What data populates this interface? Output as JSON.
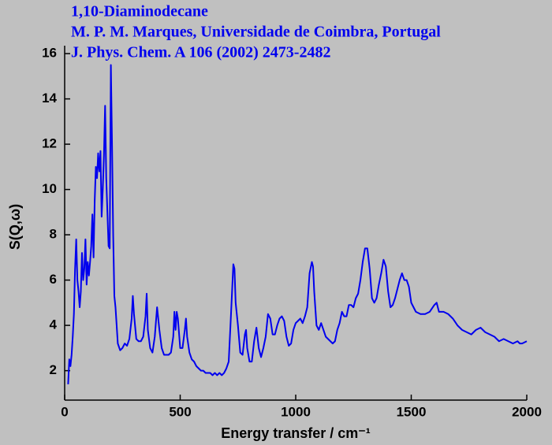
{
  "chart_data": {
    "type": "line",
    "title_lines": [
      "1,10-Diaminodecane",
      "M. P. M. Marques, Universidade de Coimbra, Portugal",
      "J. Phys. Chem. A 106 (2002) 2473-2482"
    ],
    "xlabel": "Energy transfer / cm⁻¹",
    "ylabel": "S(Q,ω)",
    "xlim": [
      0,
      2000
    ],
    "ylim": [
      0.7,
      16.35
    ],
    "xticks": [
      0,
      500,
      1000,
      1500,
      2000
    ],
    "yticks": [
      2,
      4,
      6,
      8,
      10,
      12,
      14,
      16
    ],
    "grid": false,
    "x": [
      15,
      20,
      25,
      30,
      35,
      40,
      45,
      50,
      55,
      60,
      65,
      70,
      75,
      80,
      85,
      90,
      95,
      100,
      105,
      110,
      115,
      120,
      125,
      130,
      135,
      140,
      145,
      150,
      155,
      160,
      165,
      170,
      175,
      180,
      185,
      190,
      195,
      200,
      205,
      210,
      215,
      220,
      225,
      230,
      240,
      250,
      260,
      270,
      280,
      290,
      295,
      300,
      310,
      320,
      330,
      340,
      350,
      355,
      360,
      370,
      380,
      390,
      400,
      410,
      420,
      430,
      440,
      450,
      460,
      470,
      475,
      480,
      485,
      490,
      500,
      510,
      520,
      525,
      530,
      540,
      550,
      560,
      570,
      580,
      590,
      600,
      610,
      620,
      630,
      640,
      650,
      660,
      670,
      680,
      690,
      700,
      710,
      720,
      730,
      735,
      740,
      750,
      760,
      770,
      780,
      785,
      790,
      800,
      810,
      820,
      830,
      840,
      850,
      860,
      870,
      880,
      890,
      900,
      910,
      920,
      930,
      940,
      950,
      960,
      970,
      980,
      990,
      1000,
      1010,
      1020,
      1030,
      1040,
      1050,
      1060,
      1070,
      1075,
      1080,
      1090,
      1100,
      1110,
      1120,
      1130,
      1140,
      1150,
      1160,
      1170,
      1180,
      1190,
      1200,
      1210,
      1220,
      1230,
      1240,
      1250,
      1260,
      1270,
      1280,
      1290,
      1300,
      1310,
      1320,
      1330,
      1340,
      1350,
      1360,
      1370,
      1380,
      1390,
      1400,
      1410,
      1420,
      1430,
      1440,
      1450,
      1460,
      1470,
      1480,
      1490,
      1500,
      1520,
      1540,
      1560,
      1580,
      1600,
      1610,
      1620,
      1640,
      1660,
      1680,
      1700,
      1720,
      1740,
      1760,
      1780,
      1800,
      1820,
      1840,
      1860,
      1880,
      1900,
      1920,
      1940,
      1960,
      1970,
      1980,
      2000
    ],
    "series": [
      {
        "color": "#0000ee",
        "values": [
          1.4,
          2.5,
          2.2,
          2.7,
          3.5,
          4.5,
          6.5,
          7.8,
          6.0,
          5.5,
          4.8,
          5.5,
          7.2,
          6.0,
          6.5,
          7.8,
          5.8,
          6.8,
          6.2,
          6.8,
          7.5,
          8.9,
          7.0,
          9.5,
          11.0,
          10.5,
          11.6,
          10.8,
          11.7,
          8.8,
          10.0,
          11.5,
          13.7,
          10.5,
          9.0,
          7.5,
          7.4,
          15.5,
          12.0,
          8.0,
          5.3,
          4.8,
          4.0,
          3.2,
          2.9,
          3.0,
          3.2,
          3.1,
          3.4,
          4.3,
          5.3,
          4.5,
          3.4,
          3.3,
          3.3,
          3.5,
          4.4,
          5.4,
          3.8,
          3.0,
          2.8,
          3.5,
          4.8,
          3.8,
          3.0,
          2.7,
          2.7,
          2.7,
          2.8,
          3.5,
          4.6,
          3.8,
          4.6,
          4.3,
          3.0,
          3.0,
          3.8,
          4.3,
          3.5,
          2.8,
          2.5,
          2.4,
          2.2,
          2.1,
          2.0,
          2.0,
          1.9,
          1.9,
          1.9,
          1.8,
          1.9,
          1.8,
          1.9,
          1.8,
          1.9,
          2.1,
          2.4,
          4.5,
          6.7,
          6.5,
          5.0,
          4.0,
          2.8,
          2.7,
          3.6,
          3.8,
          3.0,
          2.4,
          2.4,
          3.3,
          3.9,
          3.0,
          2.6,
          3.0,
          3.5,
          4.5,
          4.3,
          3.6,
          3.6,
          4.0,
          4.3,
          4.4,
          4.2,
          3.5,
          3.1,
          3.2,
          3.8,
          4.1,
          4.2,
          4.3,
          4.1,
          4.4,
          4.8,
          6.3,
          6.8,
          6.6,
          5.5,
          4.0,
          3.8,
          4.1,
          3.8,
          3.5,
          3.4,
          3.3,
          3.2,
          3.3,
          3.8,
          4.1,
          4.6,
          4.4,
          4.4,
          4.9,
          4.9,
          4.8,
          5.2,
          5.4,
          6.0,
          6.8,
          7.4,
          7.4,
          6.5,
          5.2,
          5.0,
          5.2,
          5.8,
          6.3,
          6.9,
          6.6,
          5.5,
          4.8,
          4.9,
          5.2,
          5.6,
          6.0,
          6.3,
          6.0,
          6.0,
          5.7,
          5.0,
          4.6,
          4.5,
          4.5,
          4.6,
          4.9,
          5.0,
          4.6,
          4.6,
          4.5,
          4.3,
          4.0,
          3.8,
          3.7,
          3.6,
          3.8,
          3.9,
          3.7,
          3.6,
          3.5,
          3.3,
          3.4,
          3.3,
          3.2,
          3.3,
          3.2,
          3.2,
          3.3
        ]
      }
    ]
  }
}
